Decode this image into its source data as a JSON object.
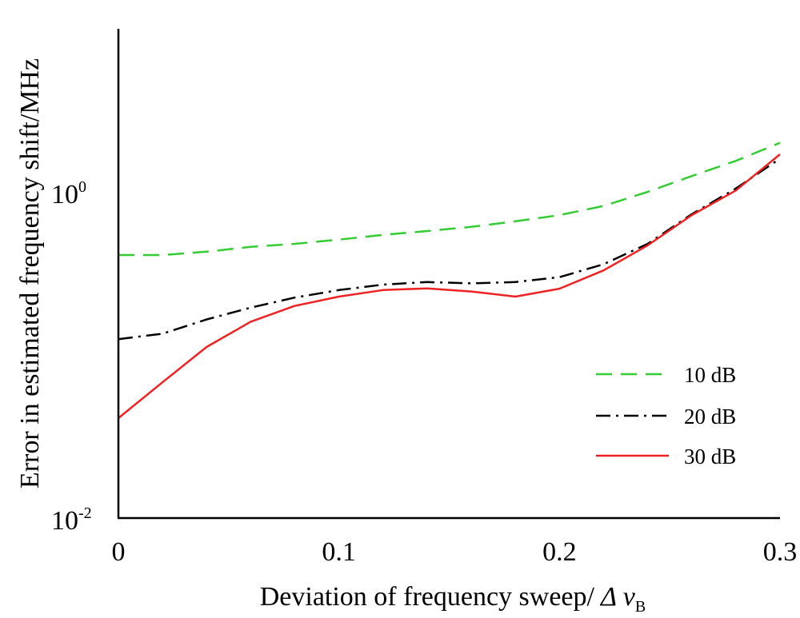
{
  "chart_data": {
    "type": "line",
    "xlabel": "Deviation of frequency sweep/",
    "xlabel_symbol": "Δ ν",
    "xlabel_subscript": "B",
    "ylabel": "Error in estimated frequency shift/MHz",
    "x_scale": "linear",
    "y_scale": "log",
    "xlim": [
      0,
      0.3
    ],
    "ylim": [
      0.01,
      10
    ],
    "x_ticks": [
      {
        "value": 0,
        "label": "0"
      },
      {
        "value": 0.1,
        "label": "0.1"
      },
      {
        "value": 0.2,
        "label": "0.2"
      },
      {
        "value": 0.3,
        "label": "0.3"
      }
    ],
    "y_ticks": [
      {
        "value": 0.01,
        "base": "10",
        "exp": "-2"
      },
      {
        "value": 1,
        "base": "10",
        "exp": "0"
      }
    ],
    "grid": false,
    "legend_position": "lower-right",
    "x": [
      0,
      0.02,
      0.04,
      0.06,
      0.08,
      0.1,
      0.12,
      0.14,
      0.16,
      0.18,
      0.2,
      0.22,
      0.24,
      0.26,
      0.28,
      0.3
    ],
    "series": [
      {
        "name": "10 dB",
        "color": "#33cc33",
        "dash": "dashed",
        "values": [
          0.41,
          0.41,
          0.43,
          0.46,
          0.48,
          0.51,
          0.545,
          0.575,
          0.61,
          0.66,
          0.72,
          0.82,
          1.0,
          1.25,
          1.55,
          2.0
        ]
      },
      {
        "name": "20 dB",
        "color": "#000000",
        "dash": "dashdot",
        "values": [
          0.125,
          0.135,
          0.165,
          0.195,
          0.225,
          0.25,
          0.27,
          0.28,
          0.275,
          0.28,
          0.3,
          0.36,
          0.48,
          0.73,
          1.05,
          1.6
        ]
      },
      {
        "name": "30 dB",
        "color": "#ee2222",
        "dash": "solid",
        "values": [
          0.041,
          0.068,
          0.112,
          0.16,
          0.2,
          0.228,
          0.25,
          0.256,
          0.245,
          0.228,
          0.255,
          0.33,
          0.47,
          0.72,
          1.02,
          1.7
        ]
      }
    ]
  }
}
